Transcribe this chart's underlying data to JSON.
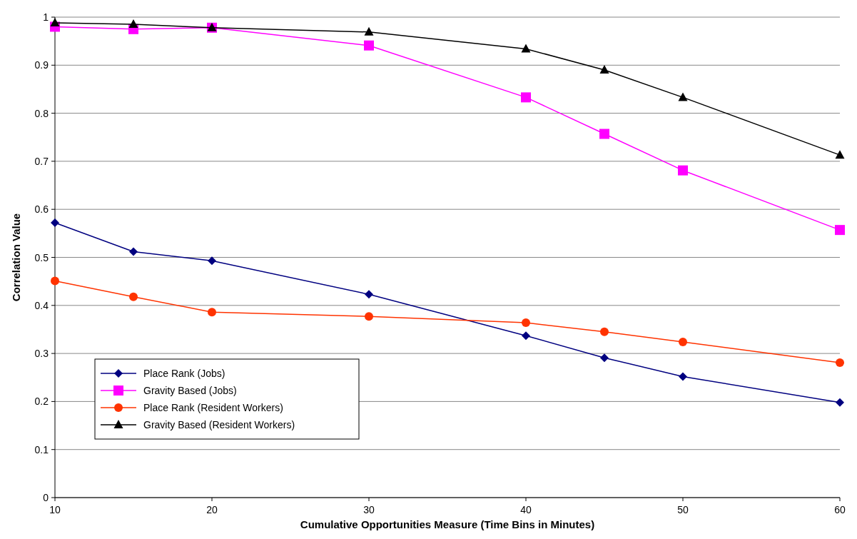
{
  "chart_data": {
    "type": "line",
    "xlabel": "Cumulative Opportunities Measure (Time Bins in Minutes)",
    "ylabel": "Correlation Value",
    "x": [
      10,
      15,
      20,
      30,
      40,
      45,
      50,
      60
    ],
    "xlim": [
      10,
      60
    ],
    "xticks": [
      10,
      20,
      30,
      40,
      50,
      60
    ],
    "ylim": [
      0,
      1
    ],
    "yticks": [
      0,
      0.1,
      0.2,
      0.3,
      0.4,
      0.5,
      0.6,
      0.7,
      0.8,
      0.9,
      1
    ],
    "grid": "y",
    "legend": "bottom left",
    "line_style": "solid",
    "series": [
      {
        "name": "Place Rank (Jobs)",
        "color": "#000080",
        "marker": "diamond",
        "values": [
          0.572,
          0.512,
          0.493,
          0.423,
          0.337,
          0.291,
          0.252,
          0.198
        ]
      },
      {
        "name": "Gravity Based (Jobs)",
        "color": "#ff00ff",
        "marker": "square",
        "values": [
          0.98,
          0.975,
          0.978,
          0.941,
          0.833,
          0.757,
          0.681,
          0.557
        ]
      },
      {
        "name": "Place Rank (Resident Workers)",
        "color": "#ff3300",
        "marker": "circle",
        "values": [
          0.451,
          0.418,
          0.386,
          0.377,
          0.364,
          0.345,
          0.324,
          0.281
        ]
      },
      {
        "name": "Gravity Based (Resident Workers)",
        "color": "#000000",
        "marker": "triangle",
        "values": [
          0.988,
          0.985,
          0.978,
          0.969,
          0.934,
          0.89,
          0.833,
          0.713
        ]
      }
    ]
  }
}
